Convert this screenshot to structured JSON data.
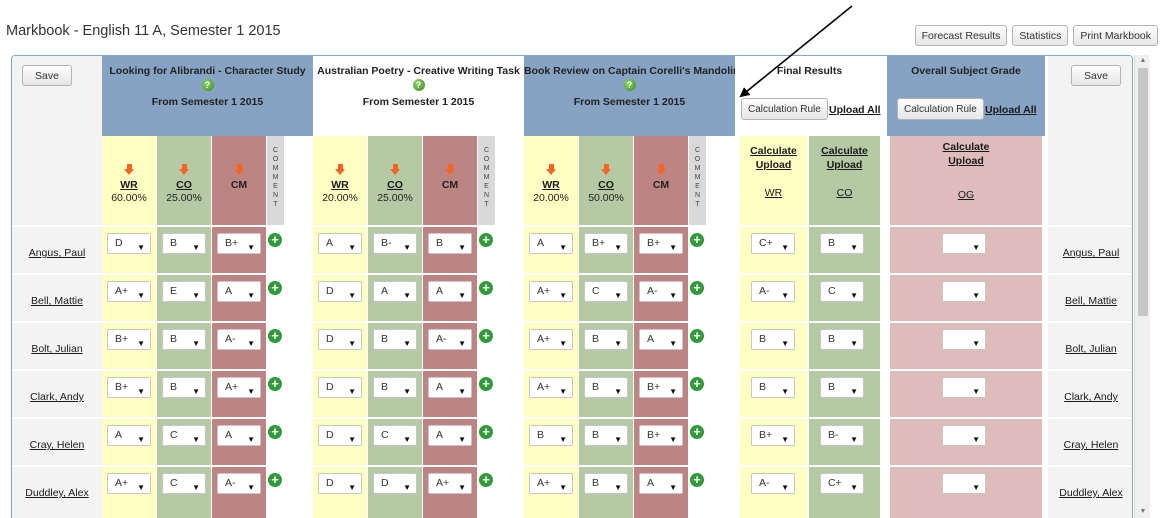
{
  "title": "Markbook - English 11 A, Semester 1 2015",
  "top_buttons": [
    "Forecast Results",
    "Statistics",
    "Print Markbook"
  ],
  "save_label": "Save",
  "assessments": [
    {
      "title": "Looking for Alibrandi - Character Study",
      "sub": "From Semester 1 2015",
      "help": "?",
      "columns": [
        {
          "code": "WR",
          "pct": "60.00%"
        },
        {
          "code": "CO",
          "pct": "25.00%"
        },
        {
          "code": "CM",
          "pct": ""
        }
      ]
    },
    {
      "title": "Australian Poetry - Creative Writing Task",
      "sub": "From Semester 1 2015",
      "help": "?",
      "columns": [
        {
          "code": "WR",
          "pct": "20.00%"
        },
        {
          "code": "CO",
          "pct": "25.00%"
        },
        {
          "code": "CM",
          "pct": ""
        }
      ]
    },
    {
      "title": "Book Review on Captain Corelli's Mandolin",
      "sub": "From Semester 1 2015",
      "help": "?",
      "columns": [
        {
          "code": "WR",
          "pct": "20.00%"
        },
        {
          "code": "CO",
          "pct": "50.00%"
        },
        {
          "code": "CM",
          "pct": ""
        }
      ]
    }
  ],
  "comment_label": "COMMENT",
  "final_results": {
    "title": "Final Results",
    "calc_rule": "Calculation Rule",
    "upload_all": "Upload All",
    "calculate": "Calculate",
    "upload": "Upload",
    "columns": [
      "WR",
      "CO"
    ]
  },
  "overall": {
    "title": "Overall Subject Grade",
    "calc_rule": "Calculation Rule",
    "upload_all": "Upload All",
    "calculate": "Calculate",
    "upload": "Upload",
    "column": "OG"
  },
  "students": [
    {
      "name": "Angus, Paul",
      "grades": [
        [
          "D",
          "B",
          "B+"
        ],
        [
          "A",
          "B-",
          "B"
        ],
        [
          "A",
          "B+",
          "B+"
        ]
      ],
      "final": [
        "C+",
        "B"
      ],
      "overall": ""
    },
    {
      "name": "Bell, Mattie",
      "grades": [
        [
          "A+",
          "E",
          "A"
        ],
        [
          "D",
          "A",
          "A"
        ],
        [
          "A+",
          "C",
          "A-"
        ]
      ],
      "final": [
        "A-",
        "C"
      ],
      "overall": ""
    },
    {
      "name": "Bolt, Julian",
      "grades": [
        [
          "B+",
          "B",
          "A-"
        ],
        [
          "D",
          "B",
          "A-"
        ],
        [
          "A+",
          "B",
          "A"
        ]
      ],
      "final": [
        "B",
        "B"
      ],
      "overall": ""
    },
    {
      "name": "Clark, Andy",
      "grades": [
        [
          "B+",
          "B",
          "A+"
        ],
        [
          "D",
          "B",
          "A"
        ],
        [
          "A+",
          "B",
          "B+"
        ]
      ],
      "final": [
        "B",
        "B"
      ],
      "overall": ""
    },
    {
      "name": "Cray, Helen",
      "grades": [
        [
          "A",
          "C",
          "A"
        ],
        [
          "D",
          "C",
          "A"
        ],
        [
          "B",
          "B",
          "B+"
        ]
      ],
      "final": [
        "B+",
        "B-"
      ],
      "overall": ""
    },
    {
      "name": "Duddley, Alex",
      "grades": [
        [
          "A+",
          "C",
          "A-"
        ],
        [
          "D",
          "D",
          "A+"
        ],
        [
          "A+",
          "B",
          "A"
        ]
      ],
      "final": [
        "A-",
        "C+"
      ],
      "overall": ""
    }
  ],
  "colors": {
    "blue_header": "#86a3c3",
    "wr": "#ffffc3",
    "co": "#b5c9a4",
    "cm": "#bd8484",
    "comment": "#d9d9d9",
    "og": "#dfbcbc",
    "name_bg": "#f3f3f3"
  }
}
